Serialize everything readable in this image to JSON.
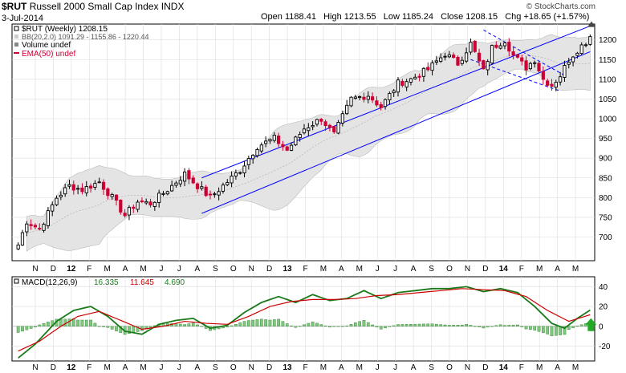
{
  "header": {
    "symbol": "$RUT",
    "name": "Russell 2000 Small Cap Index",
    "exchange": "INDX",
    "date": "3-Jul-2014",
    "open_label": "Open",
    "open": "1188.41",
    "high_label": "High",
    "high": "1213.55",
    "low_label": "Low",
    "low": "1185.24",
    "close_label": "Close",
    "close": "1208.15",
    "chg_label": "Chg",
    "chg": "+18.65 (+1.57%)",
    "watermark": "© StockCharts.com"
  },
  "legend": {
    "price": "$RUT (Weekly) 1208.15",
    "bb": "BB(20,2.0) 1091.29 - 1155.86 - 1220.44",
    "volume": "Volume undef",
    "ema": "EMA(50) undef"
  },
  "macd_legend": {
    "label": "MACD(12,26,9)",
    "macd": "16.335",
    "signal": "11.645",
    "hist": "4.690"
  },
  "colors": {
    "up": "#000000",
    "down": "#cc0033",
    "channel": "#0000ff",
    "bb_fill": "#e4e4e4",
    "macd": "#1a7a1a",
    "signal": "#cc0000",
    "hist": "#7fc97f",
    "hist_stroke": "#2e7d2e",
    "arrow": "#22aa22",
    "grid": "#dddddd"
  },
  "chart_data": [
    {
      "type": "candlestick",
      "title": "$RUT Russell 2000 Small Cap Index",
      "interval": "weekly",
      "ylim": [
        640,
        1240
      ],
      "y_ticks": [
        "700",
        "750",
        "800",
        "850",
        "900",
        "950",
        "1000",
        "1050",
        "1100",
        "1150",
        "1200"
      ],
      "x_ticks": [
        "N",
        "D",
        "12",
        "F",
        "M",
        "A",
        "M",
        "J",
        "J",
        "A",
        "S",
        "O",
        "N",
        "D",
        "13",
        "F",
        "M",
        "A",
        "M",
        "J",
        "J",
        "A",
        "S",
        "O",
        "N",
        "D",
        "14",
        "F",
        "M",
        "A",
        "M",
        "J"
      ],
      "last_close": 1208.15,
      "anchors": [
        {
          "week": 0,
          "price": 680
        },
        {
          "week": 2,
          "price": 740
        },
        {
          "week": 5,
          "price": 720
        },
        {
          "week": 9,
          "price": 800
        },
        {
          "week": 12,
          "price": 830
        },
        {
          "week": 15,
          "price": 820
        },
        {
          "week": 19,
          "price": 840
        },
        {
          "week": 22,
          "price": 800
        },
        {
          "week": 25,
          "price": 755
        },
        {
          "week": 28,
          "price": 790
        },
        {
          "week": 31,
          "price": 785
        },
        {
          "week": 35,
          "price": 820
        },
        {
          "week": 39,
          "price": 860
        },
        {
          "week": 42,
          "price": 830
        },
        {
          "week": 45,
          "price": 800
        },
        {
          "week": 48,
          "price": 830
        },
        {
          "week": 52,
          "price": 870
        },
        {
          "week": 56,
          "price": 930
        },
        {
          "week": 60,
          "price": 950
        },
        {
          "week": 63,
          "price": 920
        },
        {
          "week": 67,
          "price": 975
        },
        {
          "week": 71,
          "price": 1000
        },
        {
          "week": 74,
          "price": 960
        },
        {
          "week": 78,
          "price": 1050
        },
        {
          "week": 82,
          "price": 1060
        },
        {
          "week": 85,
          "price": 1030
        },
        {
          "week": 89,
          "price": 1090
        },
        {
          "week": 92,
          "price": 1100
        },
        {
          "week": 96,
          "price": 1125
        },
        {
          "week": 100,
          "price": 1165
        },
        {
          "week": 103,
          "price": 1140
        },
        {
          "week": 106,
          "price": 1190
        },
        {
          "week": 109,
          "price": 1120
        },
        {
          "week": 111,
          "price": 1180
        },
        {
          "week": 114,
          "price": 1200
        },
        {
          "week": 116,
          "price": 1160
        },
        {
          "week": 119,
          "price": 1130
        },
        {
          "week": 121,
          "price": 1150
        },
        {
          "week": 123,
          "price": 1100
        },
        {
          "week": 125,
          "price": 1085
        },
        {
          "week": 127,
          "price": 1110
        },
        {
          "week": 129,
          "price": 1150
        },
        {
          "week": 131,
          "price": 1175
        },
        {
          "week": 133,
          "price": 1195
        },
        {
          "week": 134,
          "price": 1208.15
        }
      ]
    },
    {
      "type": "bar",
      "title": "MACD(12,26,9)",
      "ylim": [
        -35,
        50
      ],
      "y_ticks": [
        "40",
        "20",
        "0",
        "-20"
      ],
      "x_ticks": [
        "N",
        "D",
        "12",
        "F",
        "M",
        "A",
        "M",
        "J",
        "J",
        "A",
        "S",
        "O",
        "N",
        "D",
        "13",
        "F",
        "M",
        "A",
        "M",
        "J",
        "J",
        "A",
        "S",
        "O",
        "N",
        "D",
        "14",
        "F",
        "M",
        "A",
        "M",
        "J"
      ],
      "series": [
        {
          "name": "MACD",
          "value": 16.335,
          "anchors": [
            {
              "week": 0,
              "value": -32
            },
            {
              "week": 4,
              "value": -18
            },
            {
              "week": 9,
              "value": 5
            },
            {
              "week": 13,
              "value": 16
            },
            {
              "week": 17,
              "value": 20
            },
            {
              "week": 21,
              "value": 10
            },
            {
              "week": 25,
              "value": -5
            },
            {
              "week": 29,
              "value": -8
            },
            {
              "week": 33,
              "value": 2
            },
            {
              "week": 37,
              "value": 6
            },
            {
              "week": 41,
              "value": 8
            },
            {
              "week": 45,
              "value": -2
            },
            {
              "week": 49,
              "value": 1
            },
            {
              "week": 53,
              "value": 14
            },
            {
              "week": 57,
              "value": 24
            },
            {
              "week": 61,
              "value": 30
            },
            {
              "week": 65,
              "value": 24
            },
            {
              "week": 69,
              "value": 32
            },
            {
              "week": 73,
              "value": 26
            },
            {
              "week": 77,
              "value": 28
            },
            {
              "week": 81,
              "value": 36
            },
            {
              "week": 85,
              "value": 28
            },
            {
              "week": 89,
              "value": 34
            },
            {
              "week": 93,
              "value": 36
            },
            {
              "week": 97,
              "value": 38
            },
            {
              "week": 101,
              "value": 38
            },
            {
              "week": 105,
              "value": 40
            },
            {
              "week": 109,
              "value": 35
            },
            {
              "week": 113,
              "value": 38
            },
            {
              "week": 117,
              "value": 34
            },
            {
              "week": 121,
              "value": 20
            },
            {
              "week": 125,
              "value": 3
            },
            {
              "week": 128,
              "value": -2
            },
            {
              "week": 131,
              "value": 8
            },
            {
              "week": 134,
              "value": 16.335
            }
          ]
        },
        {
          "name": "Signal",
          "value": 11.645,
          "anchors": [
            {
              "week": 0,
              "value": -25
            },
            {
              "week": 5,
              "value": -15
            },
            {
              "week": 10,
              "value": 0
            },
            {
              "week": 14,
              "value": 10
            },
            {
              "week": 19,
              "value": 15
            },
            {
              "week": 24,
              "value": 6
            },
            {
              "week": 29,
              "value": -3
            },
            {
              "week": 34,
              "value": 0
            },
            {
              "week": 39,
              "value": 5
            },
            {
              "week": 44,
              "value": 3
            },
            {
              "week": 49,
              "value": 2
            },
            {
              "week": 54,
              "value": 10
            },
            {
              "week": 59,
              "value": 20
            },
            {
              "week": 64,
              "value": 25
            },
            {
              "week": 69,
              "value": 27
            },
            {
              "week": 74,
              "value": 27
            },
            {
              "week": 79,
              "value": 28
            },
            {
              "week": 84,
              "value": 31
            },
            {
              "week": 89,
              "value": 32
            },
            {
              "week": 94,
              "value": 34
            },
            {
              "week": 99,
              "value": 36
            },
            {
              "week": 104,
              "value": 38
            },
            {
              "week": 109,
              "value": 37
            },
            {
              "week": 114,
              "value": 36
            },
            {
              "week": 119,
              "value": 30
            },
            {
              "week": 124,
              "value": 16
            },
            {
              "week": 129,
              "value": 5
            },
            {
              "week": 134,
              "value": 11.645
            }
          ]
        }
      ],
      "histogram_last": 4.69
    }
  ]
}
